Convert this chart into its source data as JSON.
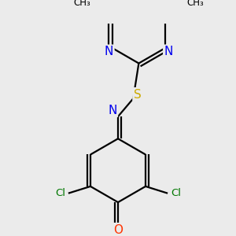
{
  "bg_color": "#ebebeb",
  "atom_colors": {
    "C": "#000000",
    "N": "#0000ee",
    "O": "#ff3300",
    "S": "#ccaa00",
    "Cl": "#007700",
    "H": "#000000"
  },
  "bond_color": "#000000",
  "bond_width": 1.6,
  "figsize": [
    3.0,
    3.0
  ],
  "dpi": 100
}
